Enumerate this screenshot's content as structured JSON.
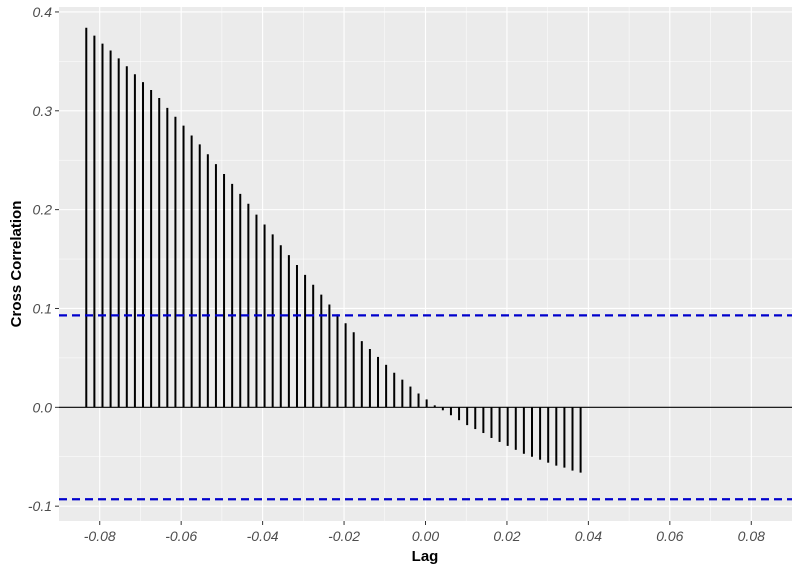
{
  "chart_data": {
    "type": "bar",
    "xlabel": "Lag",
    "ylabel": "Cross Correlation",
    "xlim": [
      -0.09,
      0.09
    ],
    "ylim": [
      -0.115,
      0.405
    ],
    "x_ticks": [
      {
        "value": -0.08,
        "label": "-0.08"
      },
      {
        "value": -0.06,
        "label": "-0.06"
      },
      {
        "value": -0.04,
        "label": "-0.04"
      },
      {
        "value": -0.02,
        "label": "-0.02"
      },
      {
        "value": 0.0,
        "label": "0.00"
      },
      {
        "value": 0.02,
        "label": "0.02"
      },
      {
        "value": 0.04,
        "label": "0.04"
      },
      {
        "value": 0.06,
        "label": "0.06"
      },
      {
        "value": 0.08,
        "label": "0.08"
      }
    ],
    "y_ticks": [
      {
        "value": -0.1,
        "label": "-0.1"
      },
      {
        "value": 0.0,
        "label": "0.0"
      },
      {
        "value": 0.1,
        "label": "0.1"
      },
      {
        "value": 0.2,
        "label": "0.2"
      },
      {
        "value": 0.3,
        "label": "0.3"
      },
      {
        "value": 0.4,
        "label": "0.4"
      }
    ],
    "confidence_bounds": [
      0.093,
      -0.093
    ],
    "lag_start": -0.0833,
    "lag_step": 0.00199,
    "values": [
      0.384,
      0.376,
      0.368,
      0.361,
      0.353,
      0.345,
      0.337,
      0.329,
      0.321,
      0.313,
      0.303,
      0.294,
      0.285,
      0.275,
      0.266,
      0.256,
      0.246,
      0.236,
      0.226,
      0.216,
      0.206,
      0.195,
      0.185,
      0.175,
      0.164,
      0.154,
      0.144,
      0.134,
      0.124,
      0.114,
      0.104,
      0.094,
      0.085,
      0.076,
      0.067,
      0.059,
      0.051,
      0.043,
      0.035,
      0.028,
      0.021,
      0.014,
      0.008,
      0.002,
      -0.003,
      -0.008,
      -0.013,
      -0.018,
      -0.022,
      -0.026,
      -0.031,
      -0.035,
      -0.039,
      -0.043,
      -0.047,
      -0.05,
      -0.053,
      -0.056,
      -0.059,
      -0.061,
      -0.064,
      -0.066
    ],
    "colors": {
      "panel": "#ebebeb",
      "grid": "#ffffff",
      "bars": "#000000",
      "bounds": "#0000cc"
    },
    "grid": true
  }
}
